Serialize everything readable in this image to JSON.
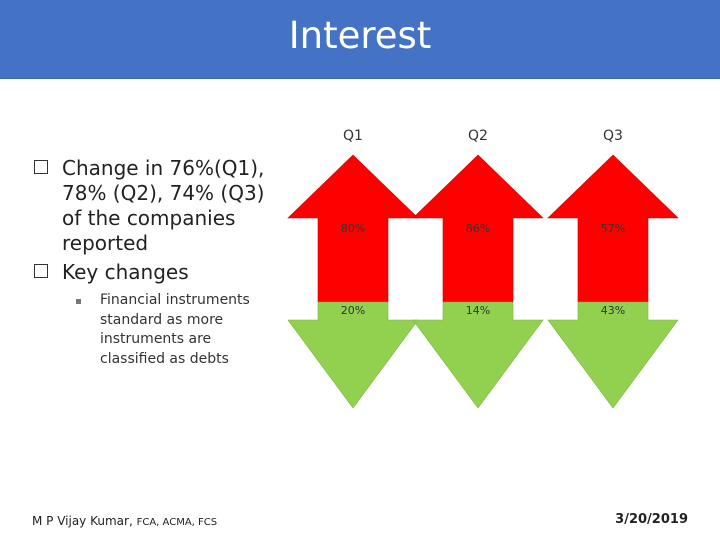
{
  "slide": {
    "title": "Interest",
    "bullets": [
      "Change in 76%(Q1), 78% (Q2), 74% (Q3) of the companies reported",
      "Key changes"
    ],
    "sub_bullets": [
      "Financial instruments standard as more instruments are classified as debts"
    ],
    "footer_author": "M P Vijay Kumar,",
    "footer_credentials": "FCA, ACMA, FCS",
    "footer_date": "3/20/2019"
  },
  "chart_data": {
    "type": "bar",
    "categories": [
      "Q1",
      "Q2",
      "Q3"
    ],
    "series": [
      {
        "values": [
          80,
          86,
          57
        ],
        "labels": [
          "80%",
          "86%",
          "57%"
        ],
        "color": "#ff0000",
        "direction": "up"
      },
      {
        "values": [
          20,
          14,
          43
        ],
        "labels": [
          "20%",
          "14%",
          "43%"
        ],
        "color": "#92d050",
        "direction": "down"
      }
    ]
  },
  "colors": {
    "title_bar": "#4472c4",
    "up_arrow": "#ff0000",
    "down_arrow": "#92d050"
  }
}
